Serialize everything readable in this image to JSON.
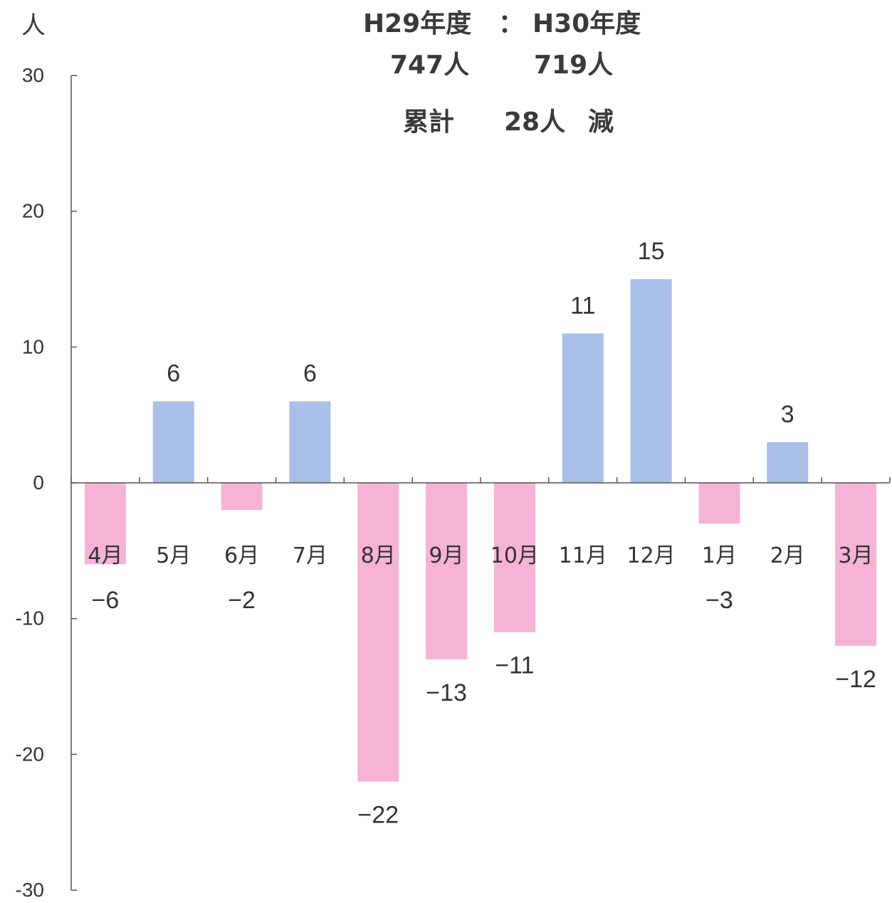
{
  "header": {
    "fy_prev": "H29年度",
    "separator": "：",
    "fy_curr": "H30年度",
    "total_prev": "747人",
    "total_curr": "719人",
    "cumulative_label": "累計",
    "cumulative_value": "28人",
    "cumulative_direction": "減"
  },
  "chart_data": {
    "type": "bar",
    "ylabel": "人",
    "ylim": [
      -30,
      30
    ],
    "yticks": [
      30,
      20,
      10,
      0,
      -10,
      -20,
      -30
    ],
    "ytick_labels": [
      "30",
      "20",
      "10",
      "0",
      "-10",
      "-20",
      "-30"
    ],
    "categories": [
      "4月",
      "5月",
      "6月",
      "7月",
      "8月",
      "9月",
      "10月",
      "11月",
      "12月",
      "1月",
      "2月",
      "3月"
    ],
    "values": [
      -6,
      6,
      -2,
      6,
      -22,
      -13,
      -11,
      11,
      15,
      -3,
      3,
      -12
    ],
    "value_labels": [
      "−6",
      "6",
      "−2",
      "6",
      "−22",
      "−13",
      "−11",
      "11",
      "15",
      "−3",
      "3",
      "−12"
    ],
    "grid": false,
    "colors": {
      "positive": "#a9bfe8",
      "negative": "#f6b3d6",
      "axis": "#555555",
      "text": "#333333"
    }
  }
}
